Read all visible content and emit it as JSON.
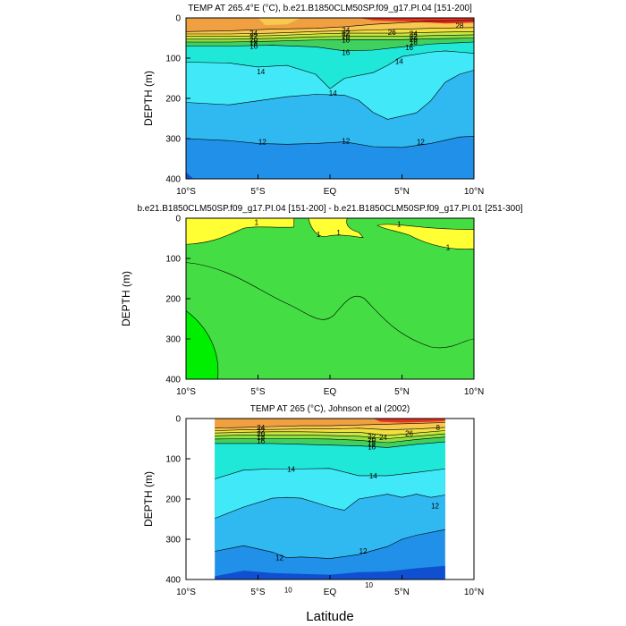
{
  "figure": {
    "xlabel": "Latitude"
  },
  "chart_data": [
    {
      "type": "heatmap",
      "title": "TEMP AT 265.4°E (°C), b.e21.B1850CLM50SP.f09_g17.PI.04 [151-200]",
      "xlabel": "",
      "ylabel": "DEPTH (m)",
      "xlim": [
        -10,
        10
      ],
      "ylim": [
        400,
        0
      ],
      "x_tick_labels": [
        "10°S",
        "5°S",
        "EQ",
        "5°N",
        "10°N"
      ],
      "y_tick_labels": [
        "0",
        "100",
        "200",
        "300",
        "400"
      ],
      "contour_levels": [
        10,
        12,
        14,
        16,
        18,
        20,
        22,
        24,
        26,
        28
      ],
      "contour_labels": [
        {
          "text": "24",
          "x": -5.3,
          "y": 38
        },
        {
          "text": "22",
          "x": -5.3,
          "y": 46
        },
        {
          "text": "20",
          "x": -5.3,
          "y": 54
        },
        {
          "text": "18",
          "x": -5.3,
          "y": 62
        },
        {
          "text": "16",
          "x": -5.3,
          "y": 70
        },
        {
          "text": "24",
          "x": 1.1,
          "y": 30
        },
        {
          "text": "22",
          "x": 1.1,
          "y": 38
        },
        {
          "text": "20",
          "x": 1.1,
          "y": 46
        },
        {
          "text": "18",
          "x": 1.1,
          "y": 54
        },
        {
          "text": "16",
          "x": 1.1,
          "y": 85
        },
        {
          "text": "26",
          "x": 4.3,
          "y": 35
        },
        {
          "text": "24",
          "x": 5.8,
          "y": 39
        },
        {
          "text": "22",
          "x": 5.8,
          "y": 46
        },
        {
          "text": "20",
          "x": 5.8,
          "y": 53
        },
        {
          "text": "18",
          "x": 5.8,
          "y": 60
        },
        {
          "text": "16",
          "x": 5.5,
          "y": 73
        },
        {
          "text": "28",
          "x": 9.0,
          "y": 19
        },
        {
          "text": "14",
          "x": -4.8,
          "y": 133
        },
        {
          "text": "14",
          "x": 0.2,
          "y": 187
        },
        {
          "text": "14",
          "x": 4.8,
          "y": 108
        },
        {
          "text": "12",
          "x": -4.7,
          "y": 308
        },
        {
          "text": "12",
          "x": 1.1,
          "y": 306
        },
        {
          "text": "12",
          "x": 6.3,
          "y": 308
        }
      ],
      "bands": [
        {
          "level": 26,
          "color": "#f0a040",
          "boundary": [
            [
              -10,
              34
            ],
            [
              -7,
              32
            ],
            [
              -4,
              28
            ],
            [
              -1,
              26
            ],
            [
              1,
              22
            ],
            [
              3,
              16
            ],
            [
              5,
              12
            ],
            [
              7,
              8
            ],
            [
              10,
              6
            ]
          ]
        },
        {
          "level": 24,
          "color": "#f8c850",
          "boundary": [
            [
              -10,
              40
            ],
            [
              -7,
              40
            ],
            [
              -4,
              38
            ],
            [
              -1,
              34
            ],
            [
              1,
              32
            ],
            [
              3,
              30
            ],
            [
              5,
              28
            ],
            [
              7,
              26
            ],
            [
              10,
              24
            ]
          ]
        },
        {
          "level": 22,
          "color": "#f0e040",
          "boundary": [
            [
              -10,
              46
            ],
            [
              -7,
              46
            ],
            [
              -4,
              44
            ],
            [
              -1,
              40
            ],
            [
              1,
              38
            ],
            [
              3,
              38
            ],
            [
              5,
              38
            ],
            [
              7,
              36
            ],
            [
              10,
              34
            ]
          ]
        },
        {
          "level": 20,
          "color": "#c8e840",
          "boundary": [
            [
              -10,
              53
            ],
            [
              -7,
              53
            ],
            [
              -4,
              51
            ],
            [
              -1,
              47
            ],
            [
              1,
              46
            ],
            [
              3,
              46
            ],
            [
              5,
              46
            ],
            [
              7,
              44
            ],
            [
              10,
              42
            ]
          ]
        },
        {
          "level": 18,
          "color": "#90e040",
          "boundary": [
            [
              -10,
              60
            ],
            [
              -7,
              60
            ],
            [
              -4,
              58
            ],
            [
              -1,
              55
            ],
            [
              1,
              54
            ],
            [
              3,
              54
            ],
            [
              5,
              54
            ],
            [
              7,
              52
            ],
            [
              10,
              50
            ]
          ]
        },
        {
          "level": 16,
          "color": "#40d060",
          "boundary": [
            [
              -10,
              70
            ],
            [
              -7,
              70
            ],
            [
              -4,
              68
            ],
            [
              -1,
              72
            ],
            [
              1,
              82
            ],
            [
              3,
              80
            ],
            [
              5,
              72
            ],
            [
              7,
              65
            ],
            [
              10,
              60
            ]
          ]
        },
        {
          "level": 14,
          "color": "#20e8d8",
          "boundary": [
            [
              -10,
              110
            ],
            [
              -7,
              112
            ],
            [
              -5,
              122
            ],
            [
              -3,
              118
            ],
            [
              -1,
              140
            ],
            [
              0,
              176
            ],
            [
              1,
              150
            ],
            [
              3,
              136
            ],
            [
              4,
              118
            ],
            [
              5,
              96
            ],
            [
              7,
              85
            ],
            [
              8,
              82
            ],
            [
              10,
              88
            ]
          ]
        },
        {
          "level": 12,
          "color": "#40e8f8",
          "boundary": [
            [
              -10,
              210
            ],
            [
              -7,
              216
            ],
            [
              -5,
              206
            ],
            [
              -3,
              196
            ],
            [
              -1,
              190
            ],
            [
              1,
              192
            ],
            [
              2,
              205
            ],
            [
              3,
              235
            ],
            [
              4,
              252
            ],
            [
              6,
              236
            ],
            [
              7,
              206
            ],
            [
              8,
              160
            ],
            [
              9,
              140
            ],
            [
              10,
              130
            ]
          ]
        },
        {
          "level": 10,
          "color": "#30b8f0",
          "boundary": [
            [
              -10,
              300
            ],
            [
              -7,
              305
            ],
            [
              -5,
              312
            ],
            [
              -3,
              314
            ],
            [
              -1,
              312
            ],
            [
              1,
              308
            ],
            [
              3,
              320
            ],
            [
              5,
              322
            ],
            [
              7,
              312
            ],
            [
              9,
              296
            ],
            [
              10,
              294
            ]
          ]
        }
      ],
      "deep_colors": [
        "#2090e8",
        "#1050d0"
      ]
    },
    {
      "type": "heatmap",
      "title": "b.e21.B1850CLM50SP.f09_g17.PI.04 [151-200] - b.e21.B1850CLM50SP.f09_g17.PI.01 [251-300]",
      "xlabel": "",
      "ylabel": "DEPTH (m)",
      "xlim": [
        -10,
        10
      ],
      "ylim": [
        400,
        0
      ],
      "x_tick_labels": [
        "10°S",
        "5°S",
        "EQ",
        "5°N",
        "10°N"
      ],
      "y_tick_labels": [
        "0",
        "100",
        "200",
        "300",
        "400"
      ],
      "contour_labels": [
        {
          "text": "1",
          "x": -5.1,
          "y": 10
        },
        {
          "text": "1",
          "x": -0.8,
          "y": 40
        },
        {
          "text": "1",
          "x": 0.6,
          "y": 35
        },
        {
          "text": "1",
          "x": 4.8,
          "y": 14
        },
        {
          "text": "1",
          "x": 8.2,
          "y": 72
        }
      ],
      "colors": {
        "positive_yellow": "#ffff33",
        "main_green": "#44dd44",
        "light_green": "#00ee00"
      }
    },
    {
      "type": "heatmap",
      "title": "TEMP AT 265 (°C), Johnson et al (2002)",
      "xlabel": "",
      "ylabel": "DEPTH (m)",
      "xlim": [
        -10,
        10
      ],
      "ylim": [
        400,
        0
      ],
      "data_x_range": [
        -8,
        8
      ],
      "x_tick_labels": [
        "10°S",
        "5°S",
        "EQ",
        "5°N",
        "10°N"
      ],
      "y_tick_labels": [
        "0",
        "100",
        "200",
        "300",
        "400"
      ],
      "contour_levels": [
        10,
        12,
        14,
        16,
        18,
        20,
        22,
        24,
        26,
        28
      ],
      "contour_labels": [
        {
          "text": "24",
          "x": -4.8,
          "y": 22
        },
        {
          "text": "22",
          "x": -4.8,
          "y": 30
        },
        {
          "text": "20",
          "x": -4.8,
          "y": 38
        },
        {
          "text": "18",
          "x": -4.8,
          "y": 47
        },
        {
          "text": "16",
          "x": -4.8,
          "y": 56
        },
        {
          "text": "22",
          "x": 2.9,
          "y": 44
        },
        {
          "text": "24",
          "x": 3.7,
          "y": 47
        },
        {
          "text": "20",
          "x": 2.9,
          "y": 52
        },
        {
          "text": "18",
          "x": 2.9,
          "y": 61
        },
        {
          "text": "16",
          "x": 2.9,
          "y": 70
        },
        {
          "text": "26",
          "x": 5.5,
          "y": 37
        },
        {
          "text": "8",
          "x": 7.5,
          "y": 22
        },
        {
          "text": "14",
          "x": -2.7,
          "y": 125
        },
        {
          "text": "14",
          "x": 3.0,
          "y": 142
        },
        {
          "text": "12",
          "x": 7.3,
          "y": 217
        },
        {
          "text": "12",
          "x": 2.3,
          "y": 329
        },
        {
          "text": "12",
          "x": -3.5,
          "y": 346
        },
        {
          "text": "10",
          "x": -2.9,
          "y": 425
        },
        {
          "text": "10",
          "x": 2.7,
          "y": 413
        }
      ],
      "bands": [
        {
          "level": 26,
          "color": "#f0a040",
          "boundary": [
            [
              -8,
              24
            ],
            [
              -6,
              22
            ],
            [
              -4,
              20
            ],
            [
              -2,
              18
            ],
            [
              0,
              18
            ],
            [
              2,
              16
            ],
            [
              4,
              14
            ],
            [
              6,
              12
            ],
            [
              8,
              10
            ]
          ]
        },
        {
          "level": 24,
          "color": "#f8c850",
          "boundary": [
            [
              -8,
              30
            ],
            [
              -6,
              28
            ],
            [
              -4,
              27
            ],
            [
              -2,
              26
            ],
            [
              0,
              26
            ],
            [
              2,
              24
            ],
            [
              4,
              28
            ],
            [
              6,
              26
            ],
            [
              8,
              22
            ]
          ]
        },
        {
          "level": 22,
          "color": "#f0e040",
          "boundary": [
            [
              -8,
              36
            ],
            [
              -6,
              34
            ],
            [
              -4,
              33
            ],
            [
              -2,
              33
            ],
            [
              0,
              34
            ],
            [
              2,
              34
            ],
            [
              4,
              42
            ],
            [
              6,
              36
            ],
            [
              8,
              30
            ]
          ]
        },
        {
          "level": 20,
          "color": "#c8e840",
          "boundary": [
            [
              -8,
              43
            ],
            [
              -6,
              41
            ],
            [
              -4,
              41
            ],
            [
              -2,
              41
            ],
            [
              0,
              42
            ],
            [
              2,
              44
            ],
            [
              4,
              50
            ],
            [
              6,
              44
            ],
            [
              8,
              38
            ]
          ]
        },
        {
          "level": 18,
          "color": "#90e040",
          "boundary": [
            [
              -8,
              51
            ],
            [
              -6,
              50
            ],
            [
              -4,
              50
            ],
            [
              -2,
              50
            ],
            [
              0,
              51
            ],
            [
              2,
              54
            ],
            [
              4,
              60
            ],
            [
              6,
              52
            ],
            [
              8,
              46
            ]
          ]
        },
        {
          "level": 16,
          "color": "#40d060",
          "boundary": [
            [
              -8,
              62
            ],
            [
              -6,
              62
            ],
            [
              -4,
              62
            ],
            [
              -2,
              64
            ],
            [
              0,
              66
            ],
            [
              2,
              68
            ],
            [
              4,
              72
            ],
            [
              6,
              64
            ],
            [
              8,
              58
            ]
          ]
        },
        {
          "level": 14,
          "color": "#20e8d8",
          "boundary": [
            [
              -8,
              150
            ],
            [
              -6,
              128
            ],
            [
              -4,
              125
            ],
            [
              -2,
              125
            ],
            [
              0,
              124
            ],
            [
              2,
              142
            ],
            [
              4,
              142
            ],
            [
              6,
              134
            ],
            [
              8,
              125
            ]
          ]
        },
        {
          "level": 12,
          "color": "#40e8f8",
          "boundary": [
            [
              -8,
              248
            ],
            [
              -6,
              220
            ],
            [
              -4,
              198
            ],
            [
              -3,
              196
            ],
            [
              -2,
              198
            ],
            [
              0,
              220
            ],
            [
              1,
              228
            ],
            [
              2,
              200
            ],
            [
              4,
              188
            ],
            [
              5,
              196
            ],
            [
              6,
              188
            ],
            [
              7,
              196
            ],
            [
              8,
              190
            ]
          ]
        },
        {
          "level": 10,
          "color": "#30b8f0",
          "boundary": [
            [
              -8,
              330
            ],
            [
              -6,
              316
            ],
            [
              -4,
              332
            ],
            [
              -3,
              346
            ],
            [
              -2,
              344
            ],
            [
              0,
              348
            ],
            [
              2,
              338
            ],
            [
              4,
              318
            ],
            [
              5,
              300
            ],
            [
              6,
              290
            ],
            [
              8,
              276
            ]
          ]
        }
      ],
      "deep_colors": [
        "#2090e8",
        "#1050d0"
      ]
    }
  ]
}
